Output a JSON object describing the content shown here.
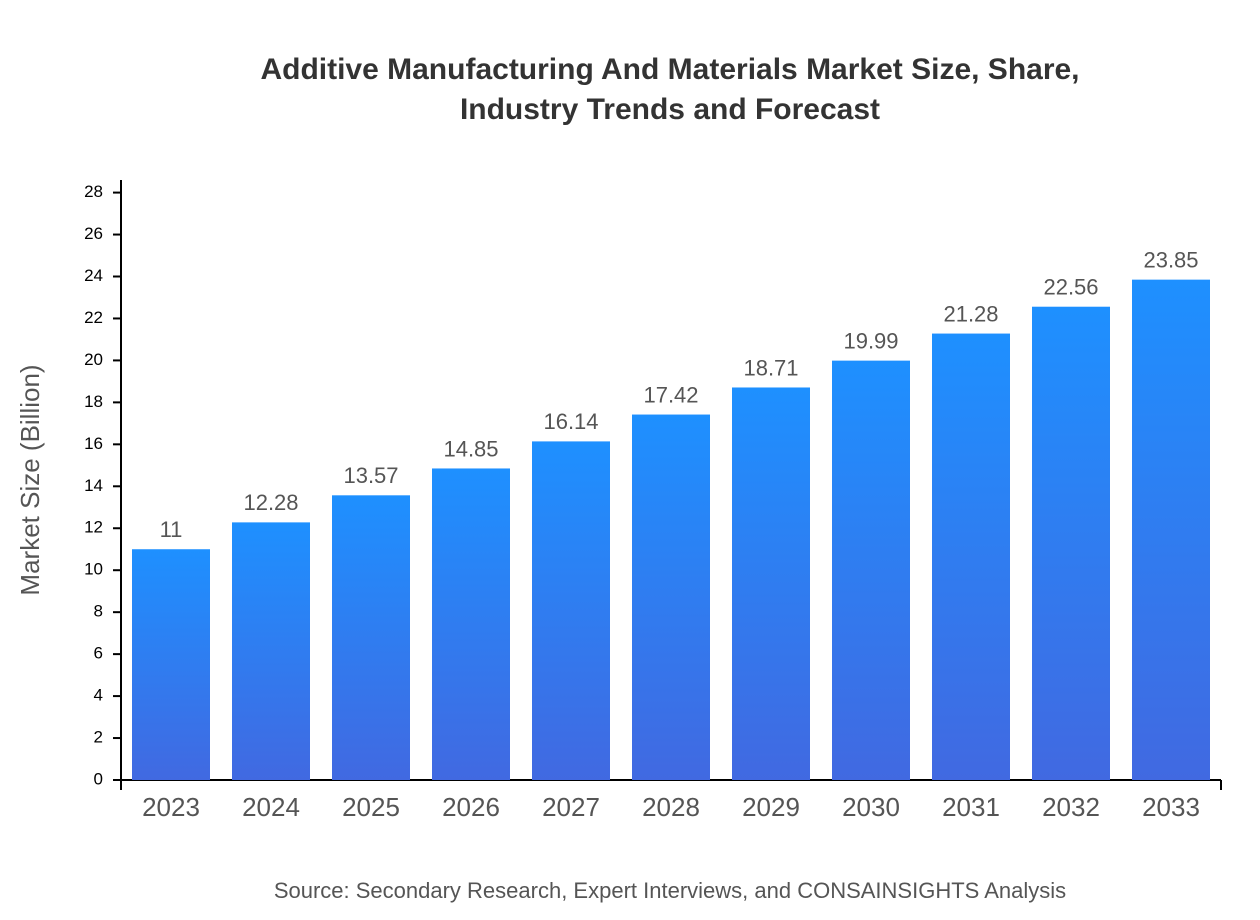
{
  "chart_data": {
    "type": "bar",
    "title": "Additive Manufacturing And Materials Market Size, Share, Industry Trends and Forecast",
    "y_label": "Market Size (Billion)",
    "source": "Source: Secondary Research, Expert Interviews, and CONSAINSIGHTS Analysis",
    "categories": [
      "2023",
      "2024",
      "2025",
      "2026",
      "2027",
      "2028",
      "2029",
      "2030",
      "2031",
      "2032",
      "2033"
    ],
    "values": [
      11,
      12.28,
      13.57,
      14.85,
      16.14,
      17.42,
      18.71,
      19.99,
      21.28,
      22.56,
      23.85
    ],
    "color_top": "#1e90ff",
    "color_bottom": "#4169e1",
    "ylim": [
      0,
      28.6
    ],
    "yticks": [
      0,
      2,
      4,
      6,
      8,
      10,
      12,
      14,
      16,
      18,
      20,
      22,
      24,
      26,
      28
    ]
  }
}
